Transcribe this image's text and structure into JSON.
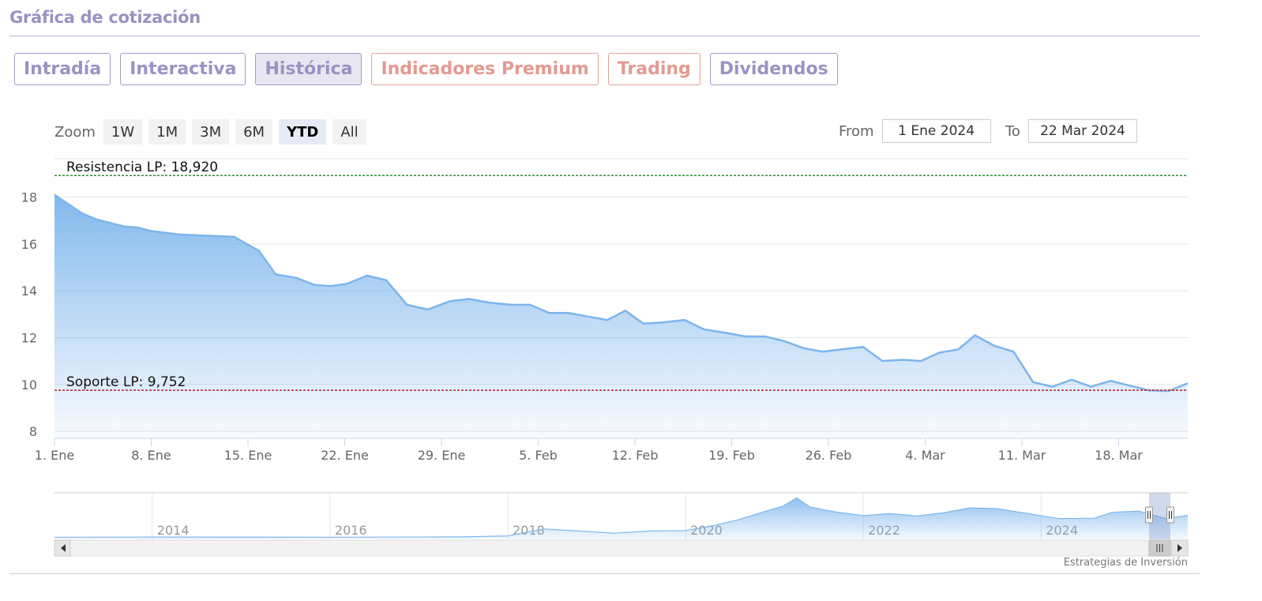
{
  "header": {
    "title": "Gráfica de cotización"
  },
  "tabs": [
    {
      "label": "Intradía",
      "active": false,
      "premium": false
    },
    {
      "label": "Interactiva",
      "active": false,
      "premium": false
    },
    {
      "label": "Histórica",
      "active": true,
      "premium": false
    },
    {
      "label": "Indicadores Premium",
      "active": false,
      "premium": true
    },
    {
      "label": "Trading",
      "active": false,
      "premium": true
    },
    {
      "label": "Dividendos",
      "active": false,
      "premium": false
    }
  ],
  "zoom": {
    "label": "Zoom",
    "buttons": [
      "1W",
      "1M",
      "3M",
      "6M",
      "YTD",
      "All"
    ],
    "selected": "YTD"
  },
  "range": {
    "from_label": "From",
    "from_value": "1 Ene 2024",
    "to_label": "To",
    "to_value": "22 Mar 2024"
  },
  "credits": "Estrategias de Inversión",
  "colors": {
    "accent": "#9a93c4",
    "premium": "#e49a91",
    "series": "#7cb5ec",
    "resistance": "#2e8b2e",
    "support": "#b22222"
  },
  "chart_data": {
    "type": "area",
    "y_ticks": [
      8,
      10,
      12,
      14,
      16,
      18
    ],
    "ylim": [
      7.7,
      19.5
    ],
    "x_ticks": [
      {
        "day": 0,
        "label": "1. Ene"
      },
      {
        "day": 7,
        "label": "8. Ene"
      },
      {
        "day": 14,
        "label": "15. Ene"
      },
      {
        "day": 21,
        "label": "22. Ene"
      },
      {
        "day": 28,
        "label": "29. Ene"
      },
      {
        "day": 35,
        "label": "5. Feb"
      },
      {
        "day": 42,
        "label": "12. Feb"
      },
      {
        "day": 49,
        "label": "19. Feb"
      },
      {
        "day": 56,
        "label": "26. Feb"
      },
      {
        "day": 63,
        "label": "4. Mar"
      },
      {
        "day": 70,
        "label": "11. Mar"
      },
      {
        "day": 77,
        "label": "18. Mar"
      }
    ],
    "x_range": [
      0,
      82
    ],
    "series": [
      {
        "values": [
          [
            0,
            18.1
          ],
          [
            2,
            17.3
          ],
          [
            3,
            17.05
          ],
          [
            4,
            16.9
          ],
          [
            5,
            16.75
          ],
          [
            6,
            16.7
          ],
          [
            7,
            16.55
          ],
          [
            9,
            16.4
          ],
          [
            11,
            16.35
          ],
          [
            13,
            16.3
          ],
          [
            14.8,
            15.7
          ],
          [
            16,
            14.7
          ],
          [
            17.5,
            14.55
          ],
          [
            18.8,
            14.25
          ],
          [
            20,
            14.2
          ],
          [
            21.2,
            14.3
          ],
          [
            22.6,
            14.65
          ],
          [
            24,
            14.45
          ],
          [
            25.5,
            13.4
          ],
          [
            27,
            13.2
          ],
          [
            28.6,
            13.55
          ],
          [
            30,
            13.65
          ],
          [
            31.4,
            13.5
          ],
          [
            33,
            13.4
          ],
          [
            34.4,
            13.4
          ],
          [
            35.8,
            13.05
          ],
          [
            37.2,
            13.05
          ],
          [
            38.6,
            12.9
          ],
          [
            40,
            12.75
          ],
          [
            41.3,
            13.15
          ],
          [
            42.6,
            12.6
          ],
          [
            44,
            12.65
          ],
          [
            45.6,
            12.75
          ],
          [
            47,
            12.35
          ],
          [
            48.6,
            12.2
          ],
          [
            50,
            12.05
          ],
          [
            51.4,
            12.05
          ],
          [
            52.8,
            11.85
          ],
          [
            54.2,
            11.55
          ],
          [
            55.6,
            11.4
          ],
          [
            57,
            11.5
          ],
          [
            58.5,
            11.6
          ],
          [
            59.9,
            11.0
          ],
          [
            61.3,
            11.05
          ],
          [
            62.7,
            11.0
          ],
          [
            64,
            11.35
          ],
          [
            65.4,
            11.5
          ],
          [
            66.6,
            12.1
          ],
          [
            68,
            11.65
          ],
          [
            69.4,
            11.4
          ],
          [
            70.8,
            10.1
          ],
          [
            72.2,
            9.9
          ],
          [
            73.6,
            10.2
          ],
          [
            75,
            9.9
          ],
          [
            76.4,
            10.15
          ],
          [
            77.8,
            9.95
          ],
          [
            79.2,
            9.75
          ],
          [
            80.6,
            9.72
          ],
          [
            82,
            10.05
          ]
        ]
      }
    ],
    "plot_lines": [
      {
        "label": "Resistencia LP: 18,920",
        "value": 18.92,
        "color": "#2e8b2e"
      },
      {
        "label": "Soporte LP: 9,752",
        "value": 9.752,
        "color": "#b22222"
      }
    ],
    "navigator": {
      "year_labels": [
        "2014",
        "2016",
        "2018",
        "2020",
        "2022",
        "2024"
      ],
      "series": [
        [
          2012.9,
          0.3
        ],
        [
          2014,
          0.35
        ],
        [
          2016,
          0.3
        ],
        [
          2017.5,
          0.45
        ],
        [
          2018.0,
          1.0
        ],
        [
          2018.4,
          4.6
        ],
        [
          2018.8,
          3.6
        ],
        [
          2019.2,
          2.4
        ],
        [
          2019.6,
          3.6
        ],
        [
          2020.0,
          3.8
        ],
        [
          2020.3,
          6.2
        ],
        [
          2020.6,
          9.5
        ],
        [
          2020.9,
          13.8
        ],
        [
          2021.1,
          16.6
        ],
        [
          2021.25,
          20.8
        ],
        [
          2021.4,
          16.0
        ],
        [
          2021.7,
          13.4
        ],
        [
          2022.0,
          11.6
        ],
        [
          2022.3,
          12.6
        ],
        [
          2022.6,
          11.4
        ],
        [
          2022.9,
          13.0
        ],
        [
          2023.2,
          15.6
        ],
        [
          2023.5,
          15.2
        ],
        [
          2023.8,
          13.0
        ],
        [
          2024.2,
          10.0
        ],
        [
          2024.6,
          10.2
        ],
        [
          2024.8,
          13.3
        ],
        [
          2025.1,
          13.9
        ],
        [
          2025.4,
          10.0
        ],
        [
          2025.65,
          11.7
        ]
      ]
    }
  }
}
